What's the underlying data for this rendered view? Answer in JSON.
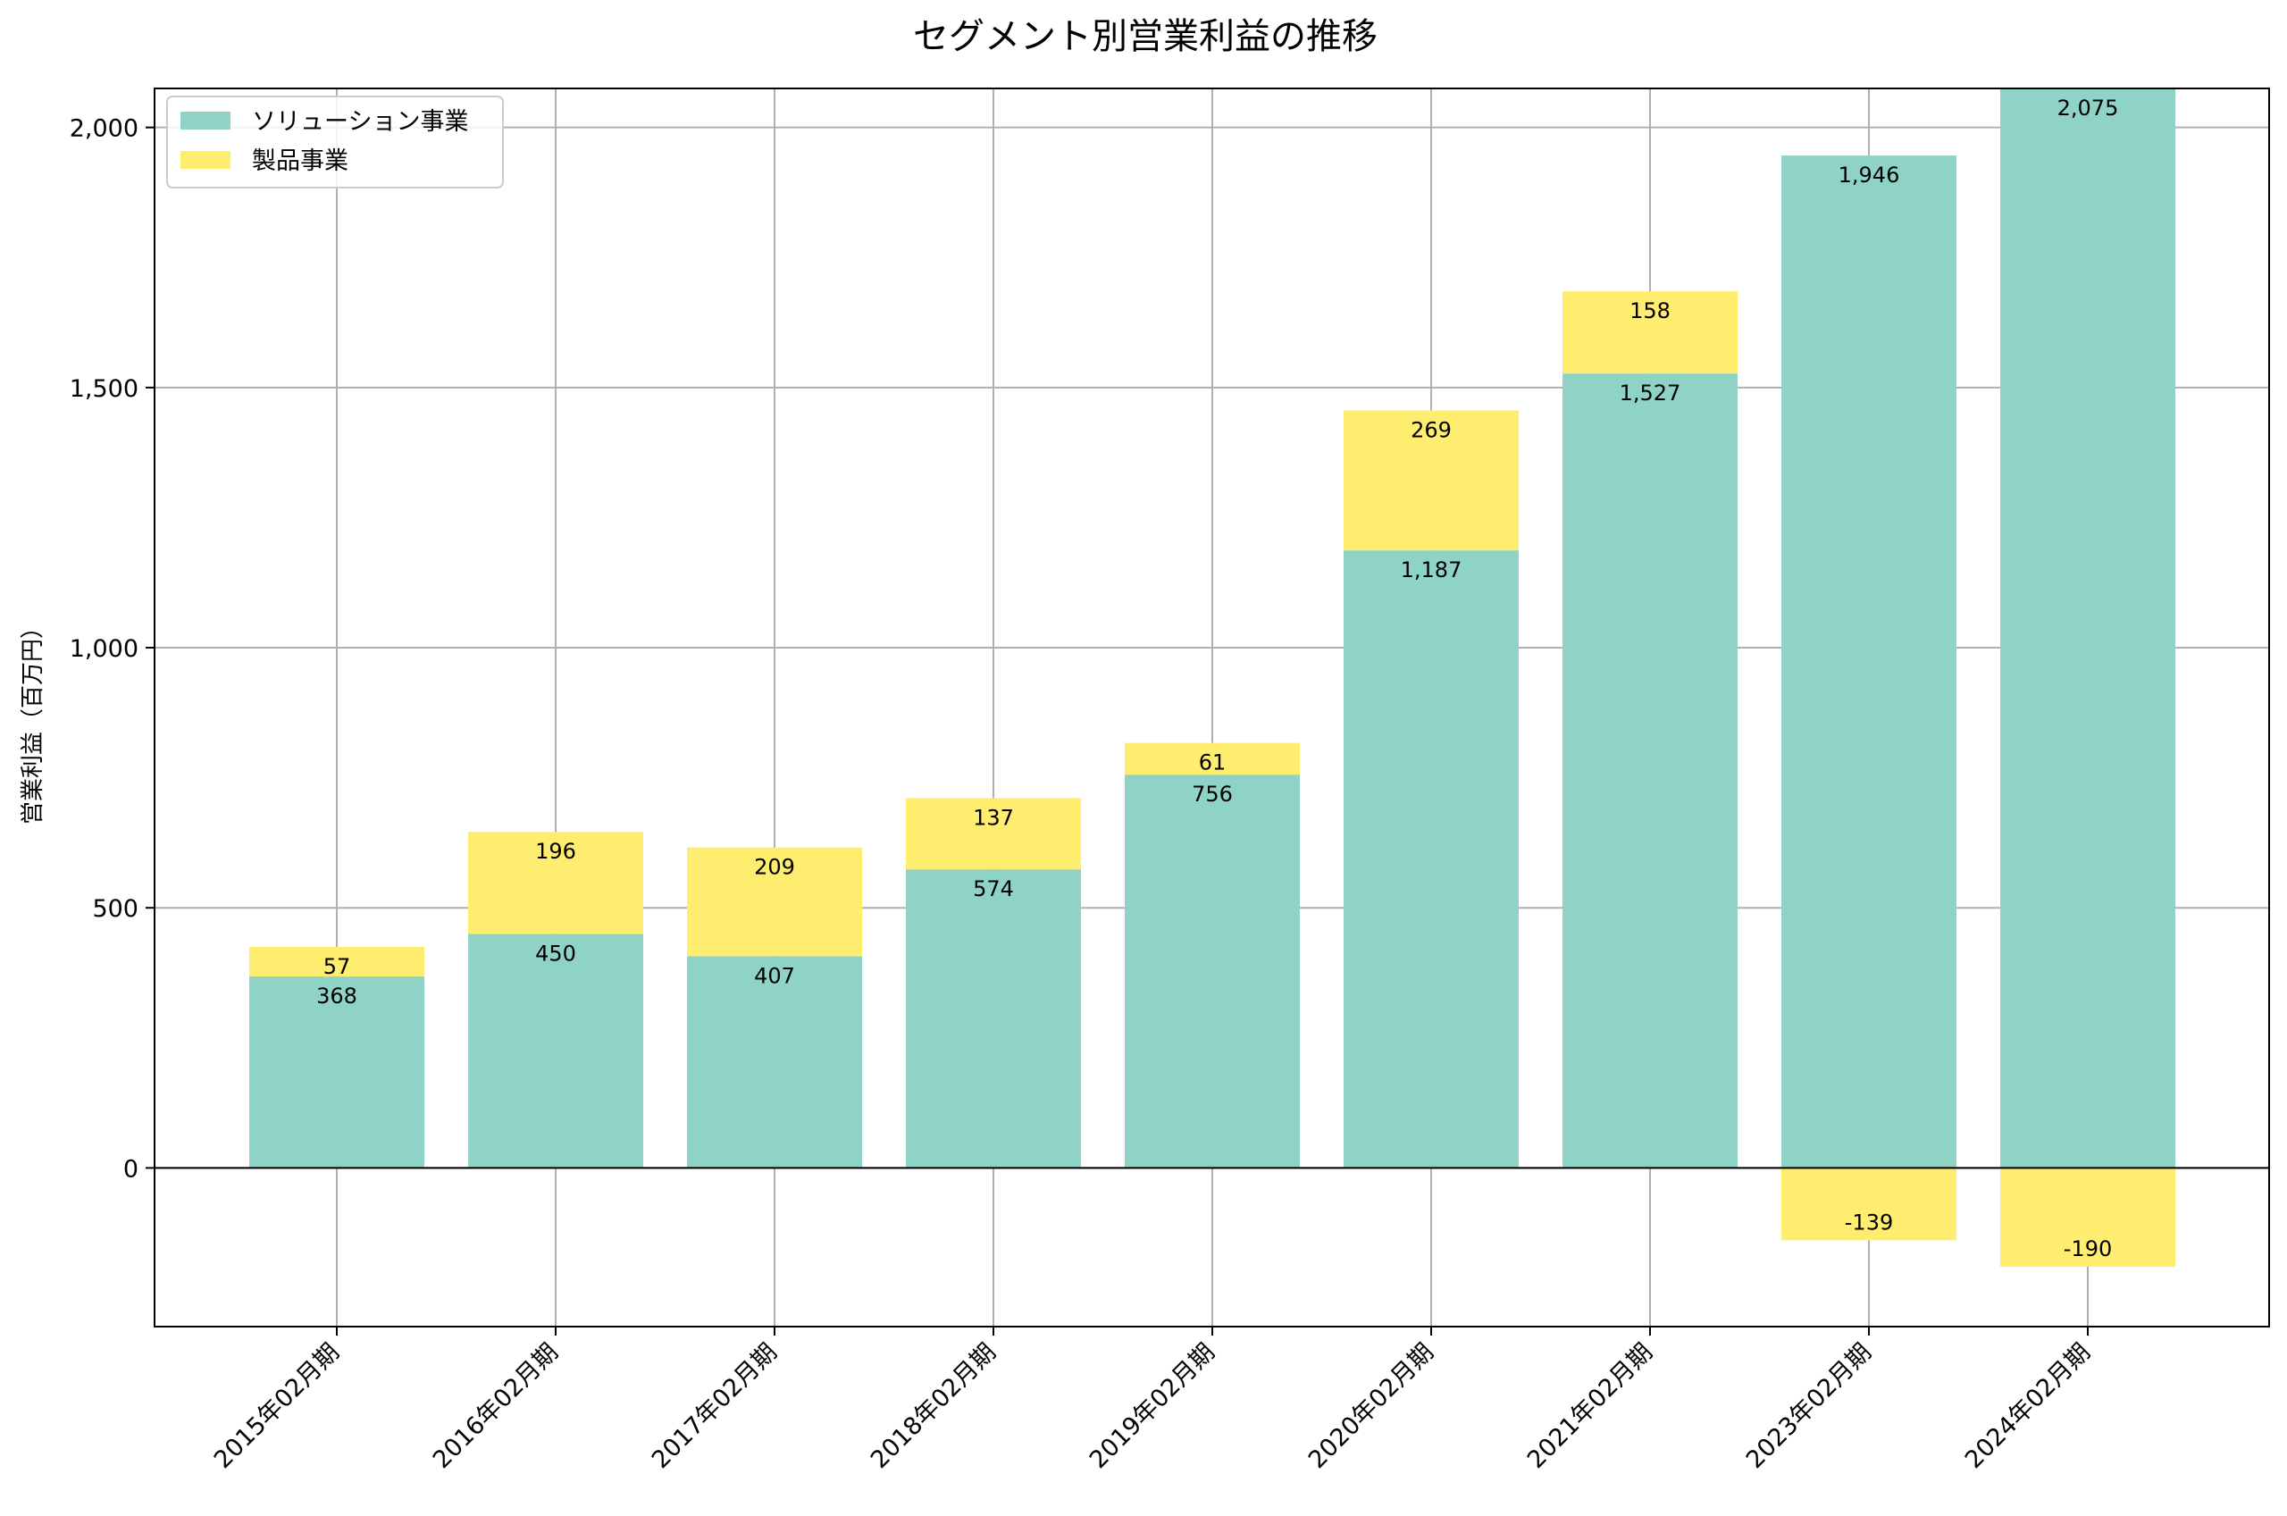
{
  "chart_data": {
    "type": "bar",
    "stacked": true,
    "title": "セグメント別営業利益の推移",
    "xlabel": "",
    "ylabel": "営業利益（百万円）",
    "ylim": [
      -305,
      2075
    ],
    "yticks": [
      0,
      500,
      1000,
      1500,
      2000
    ],
    "ytick_labels": [
      "0",
      "500",
      "1,000",
      "1,500",
      "2,000"
    ],
    "grid": true,
    "legend_position": "top-left",
    "categories": [
      "2015年02月期",
      "2016年02月期",
      "2017年02月期",
      "2018年02月期",
      "2019年02月期",
      "2020年02月期",
      "2021年02月期",
      "2023年02月期",
      "2024年02月期"
    ],
    "series": [
      {
        "name": "ソリューション事業",
        "color": "#8fd3c7",
        "values": [
          368,
          450,
          407,
          574,
          756,
          1187,
          1527,
          1946,
          2075
        ],
        "labels": [
          "368",
          "450",
          "407",
          "574",
          "756",
          "1,187",
          "1,527",
          "1,946",
          "2,075"
        ]
      },
      {
        "name": "製品事業",
        "color": "#ffed6f",
        "values": [
          57,
          196,
          209,
          137,
          61,
          269,
          158,
          -139,
          -190
        ],
        "labels": [
          "57",
          "196",
          "209",
          "137",
          "61",
          "269",
          "158",
          "-139",
          "-190"
        ]
      }
    ]
  }
}
